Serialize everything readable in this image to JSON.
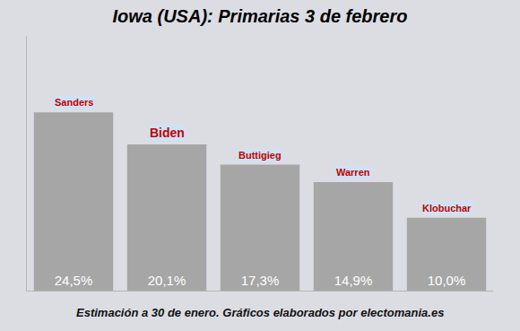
{
  "chart_data": {
    "type": "bar",
    "title": "Iowa (USA): Primarias 3 de febrero",
    "annotations": [
      "Estimación a 30 de enero. Gráficos elaborados por electomania.es"
    ],
    "categories": [
      "Sanders",
      "Biden",
      "Buttigieg",
      "Warren",
      "Klobuchar"
    ],
    "values": [
      24.5,
      20.1,
      17.3,
      14.9,
      10.0
    ],
    "value_labels": [
      "24,5%",
      "20,1%",
      "17,3%",
      "14,9%",
      "10,0%"
    ],
    "color": "#a6a6a6",
    "ylim": [
      0,
      35
    ],
    "yticks": [],
    "grid": false,
    "data_labels": true,
    "tick_labels": false
  }
}
